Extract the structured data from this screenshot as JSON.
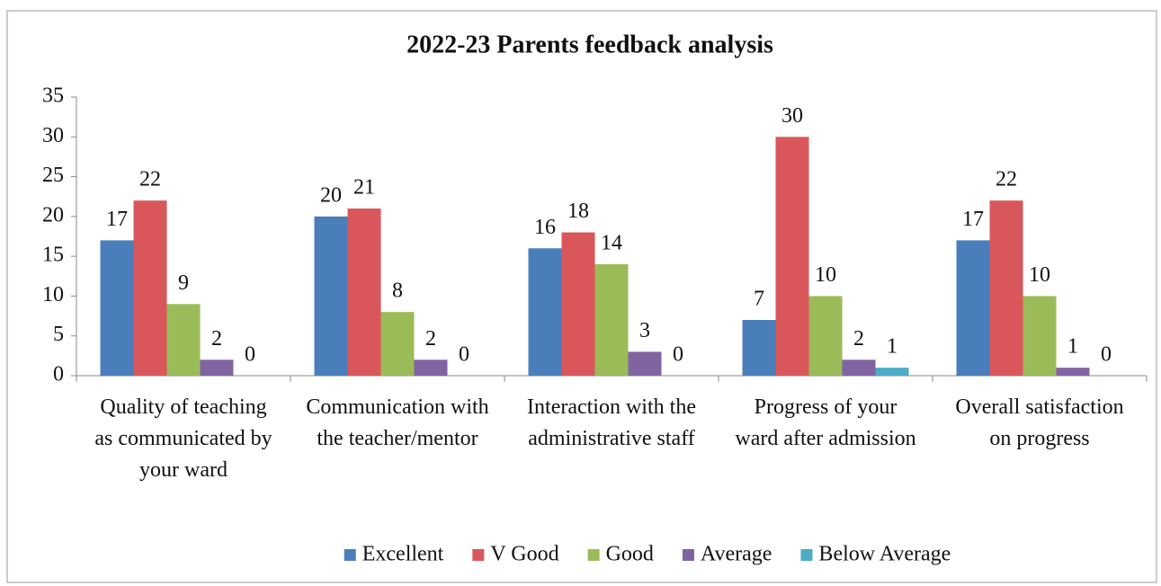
{
  "chart_data": {
    "type": "bar",
    "title": "2022-23 Parents feedback analysis",
    "categories": [
      "Quality of teaching as communicated by your ward",
      "Communication with the teacher/mentor",
      "Interaction with the administrative staff",
      "Progress of your ward after admission",
      "Overall satisfaction on progress"
    ],
    "series": [
      {
        "name": "Excellent",
        "color": "#4a7ebb",
        "values": [
          17,
          20,
          16,
          7,
          17
        ]
      },
      {
        "name": "V Good",
        "color": "#d9575a",
        "values": [
          22,
          21,
          18,
          30,
          22
        ]
      },
      {
        "name": "Good",
        "color": "#9bbb59",
        "values": [
          9,
          8,
          14,
          10,
          10
        ]
      },
      {
        "name": "Average",
        "color": "#8064a2",
        "values": [
          2,
          2,
          3,
          2,
          1
        ]
      },
      {
        "name": "Below Average",
        "color": "#4bacc6",
        "values": [
          0,
          0,
          0,
          1,
          0
        ]
      }
    ],
    "ylim": [
      0,
      35
    ],
    "yticks": [
      0,
      5,
      10,
      15,
      20,
      25,
      30,
      35
    ],
    "legend": "bottom"
  }
}
